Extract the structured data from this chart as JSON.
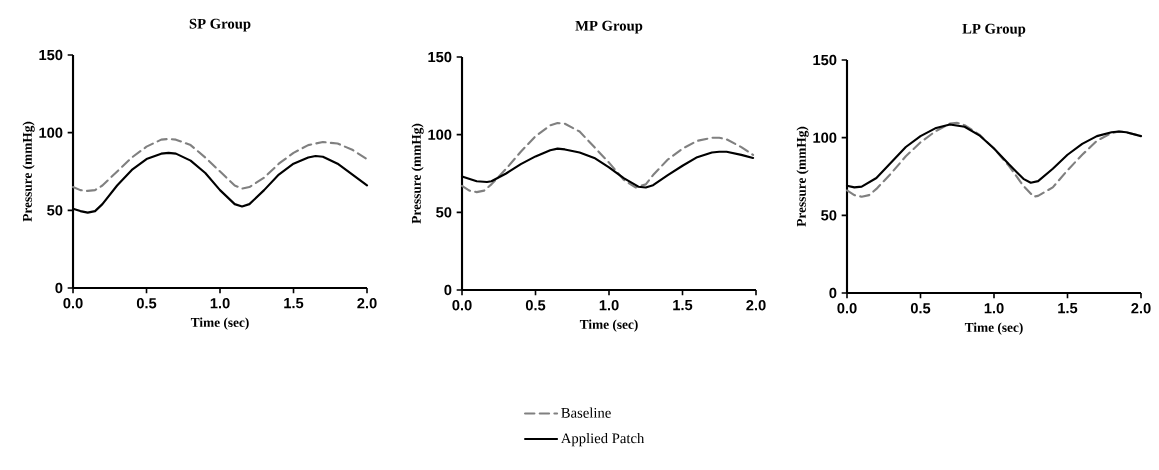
{
  "chart_data": [
    {
      "type": "line",
      "title": "SP Group",
      "xlabel": "Time (sec)",
      "ylabel": "Pressure (mmHg)",
      "xlim": [
        0,
        2
      ],
      "ylim": [
        0,
        150
      ],
      "xticks": [
        {
          "value": 0,
          "label": "0.0"
        },
        {
          "value": 0.5,
          "label": "0.5"
        },
        {
          "value": 1,
          "label": "1.0"
        },
        {
          "value": 1.5,
          "label": "1.5"
        },
        {
          "value": 2,
          "label": "2.0"
        }
      ],
      "yticks": [
        0,
        50,
        100,
        150
      ],
      "series": [
        {
          "color": "#808080",
          "line_style": "dashed",
          "x": [
            0,
            0.05,
            0.1,
            0.15,
            0.2,
            0.3,
            0.4,
            0.5,
            0.6,
            0.65,
            0.7,
            0.8,
            0.9,
            1.0,
            1.1,
            1.15,
            1.2,
            1.3,
            1.4,
            1.5,
            1.6,
            1.7,
            1.8,
            1.9,
            2.0
          ],
          "values": [
            65,
            63,
            62.5,
            63,
            66,
            75,
            84,
            91,
            95.5,
            96,
            95.5,
            92,
            84,
            75,
            66,
            64,
            65,
            71,
            80,
            87,
            92,
            94,
            93,
            89,
            83
          ]
        },
        {
          "color": "#000000",
          "line_style": "solid",
          "x": [
            0,
            0.05,
            0.1,
            0.15,
            0.2,
            0.3,
            0.4,
            0.5,
            0.6,
            0.65,
            0.7,
            0.8,
            0.9,
            1.0,
            1.1,
            1.15,
            1.2,
            1.3,
            1.4,
            1.5,
            1.6,
            1.65,
            1.7,
            1.8,
            1.9,
            2.0
          ],
          "values": [
            51,
            49.5,
            48.5,
            49.5,
            54,
            66,
            76,
            83,
            86.5,
            87,
            86.5,
            82,
            74,
            63,
            54,
            52.5,
            54,
            63,
            73,
            80,
            84,
            85,
            84.5,
            80,
            73,
            66
          ]
        }
      ]
    },
    {
      "type": "line",
      "title": "MP Group",
      "xlabel": "Time (sec)",
      "ylabel": "Pressure (mmHg)",
      "xlim": [
        0,
        2
      ],
      "ylim": [
        0,
        150
      ],
      "legend": "bottom",
      "xticks": [
        {
          "value": 0,
          "label": "0.0"
        },
        {
          "value": 0.5,
          "label": "0.5"
        },
        {
          "value": 1,
          "label": "1.0"
        },
        {
          "value": 1.5,
          "label": "1.5"
        },
        {
          "value": 2,
          "label": "2.0"
        }
      ],
      "yticks": [
        0,
        50,
        100,
        150
      ],
      "series": [
        {
          "name": "Baseline",
          "color": "#808080",
          "line_style": "dashed",
          "x": [
            0,
            0.05,
            0.1,
            0.15,
            0.2,
            0.3,
            0.4,
            0.5,
            0.6,
            0.65,
            0.7,
            0.8,
            0.9,
            1.0,
            1.1,
            1.18,
            1.25,
            1.3,
            1.4,
            1.5,
            1.6,
            1.7,
            1.75,
            1.8,
            1.9,
            1.98
          ],
          "values": [
            67,
            64,
            63,
            64,
            68,
            78,
            89,
            99,
            106,
            107.5,
            107,
            102,
            92,
            82,
            71,
            66,
            68,
            74,
            84,
            91,
            96,
            98,
            98,
            97,
            92,
            87
          ]
        },
        {
          "name": "Applied Patch",
          "color": "#000000",
          "line_style": "solid",
          "x": [
            0,
            0.1,
            0.17,
            0.2,
            0.3,
            0.4,
            0.5,
            0.6,
            0.65,
            0.7,
            0.8,
            0.9,
            1.0,
            1.1,
            1.2,
            1.25,
            1.3,
            1.4,
            1.5,
            1.6,
            1.7,
            1.75,
            1.8,
            1.9,
            1.98
          ],
          "values": [
            73,
            70,
            69.5,
            70,
            75,
            81,
            86,
            90,
            91,
            90.5,
            88.5,
            85,
            79,
            72,
            66.5,
            66,
            67.5,
            74,
            80,
            85.5,
            88.5,
            89,
            89,
            87,
            85
          ]
        }
      ]
    },
    {
      "type": "line",
      "title": "LP Group",
      "xlabel": "Time (sec)",
      "ylabel": "Pressure (mmHg)",
      "xlim": [
        0,
        2
      ],
      "ylim": [
        0,
        150
      ],
      "xticks": [
        {
          "value": 0,
          "label": "0.0"
        },
        {
          "value": 0.5,
          "label": "0.5"
        },
        {
          "value": 1,
          "label": "1.0"
        },
        {
          "value": 1.5,
          "label": "1.5"
        },
        {
          "value": 2,
          "label": "2.0"
        }
      ],
      "yticks": [
        0,
        50,
        100,
        150
      ],
      "series": [
        {
          "color": "#808080",
          "line_style": "dashed",
          "x": [
            0,
            0.05,
            0.1,
            0.15,
            0.2,
            0.3,
            0.4,
            0.5,
            0.6,
            0.7,
            0.75,
            0.8,
            0.9,
            1.0,
            1.1,
            1.2,
            1.27,
            1.3,
            1.4,
            1.5,
            1.6,
            1.7,
            1.8,
            1.85,
            1.9,
            2.0
          ],
          "values": [
            66,
            63,
            62,
            63,
            67,
            77,
            88,
            97,
            104,
            109,
            109.5,
            108,
            102,
            93,
            82,
            69,
            62,
            62.5,
            68,
            79,
            89,
            98,
            103,
            104,
            103.5,
            101
          ]
        },
        {
          "color": "#000000",
          "line_style": "solid",
          "x": [
            0,
            0.05,
            0.1,
            0.2,
            0.3,
            0.4,
            0.5,
            0.6,
            0.7,
            0.8,
            0.9,
            1.0,
            1.1,
            1.2,
            1.25,
            1.3,
            1.4,
            1.5,
            1.6,
            1.7,
            1.8,
            1.85,
            1.9,
            2.0
          ],
          "values": [
            69,
            68,
            68.5,
            74,
            84,
            94,
            101,
            106,
            108.5,
            107,
            101.5,
            93,
            83,
            73.5,
            71,
            72,
            80,
            89,
            96,
            101,
            103.5,
            104,
            103.5,
            101
          ]
        }
      ]
    }
  ]
}
